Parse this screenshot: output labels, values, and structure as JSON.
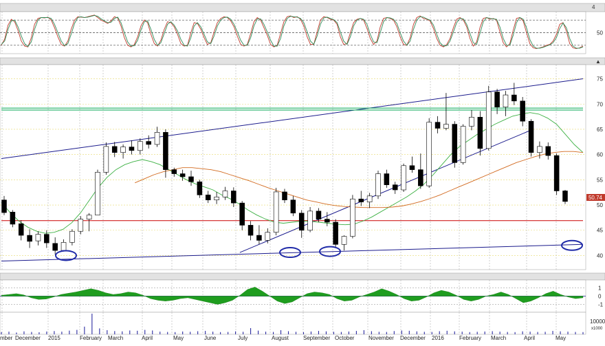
{
  "chart_data": [
    {
      "panel": "stochastic-oscillator",
      "type": "line",
      "yticks": [
        50
      ],
      "ylim": [
        0,
        100
      ],
      "levels": [
        20,
        50,
        80
      ],
      "series": [
        {
          "color": "#c0392b",
          "values": [
            20,
            35,
            68,
            82,
            76,
            55,
            30,
            18,
            16,
            38,
            70,
            84,
            86,
            85,
            87,
            80,
            62,
            40,
            22,
            18,
            30,
            58,
            80,
            88,
            87,
            86,
            88,
            90,
            92,
            86,
            80,
            76,
            72,
            78,
            88,
            85,
            66,
            38,
            20,
            16,
            22,
            40,
            66,
            80,
            74,
            46,
            24,
            18,
            32,
            58,
            76,
            74,
            64,
            46,
            24,
            18,
            20,
            50,
            74,
            72,
            58,
            38,
            22,
            26,
            52,
            74,
            84,
            88,
            86,
            78,
            64,
            42,
            22,
            18,
            22,
            48,
            76,
            86,
            80,
            62,
            44,
            22,
            16,
            20,
            48,
            76,
            88,
            90,
            86,
            88,
            82,
            66,
            40,
            22,
            22,
            52,
            80,
            88,
            86,
            82,
            80,
            70,
            40,
            22,
            24,
            50,
            74,
            82,
            84,
            80,
            60,
            36,
            22,
            30,
            64,
            84,
            86,
            84,
            80,
            64,
            40,
            22,
            20,
            38,
            70,
            86,
            90,
            84,
            82,
            78,
            60,
            36,
            20,
            16,
            22,
            36,
            62,
            82,
            86,
            80,
            64,
            36,
            18,
            28,
            62,
            84,
            86,
            82,
            84,
            80,
            52,
            26,
            16,
            24,
            56,
            84,
            86,
            78,
            50,
            24,
            14,
            12,
            14,
            16,
            20,
            22,
            30,
            46,
            70,
            74,
            54,
            24,
            14,
            12,
            14,
            18
          ]
        },
        {
          "color": "#2e8b57",
          "values": [
            22,
            30,
            58,
            78,
            80,
            64,
            42,
            24,
            17,
            28,
            58,
            80,
            86,
            86,
            86,
            84,
            70,
            50,
            30,
            19,
            24,
            46,
            72,
            86,
            88,
            86,
            87,
            89,
            91,
            89,
            83,
            78,
            74,
            75,
            84,
            87,
            74,
            50,
            28,
            18,
            19,
            32,
            56,
            76,
            78,
            58,
            34,
            20,
            26,
            48,
            70,
            76,
            68,
            54,
            34,
            20,
            18,
            38,
            66,
            74,
            64,
            46,
            28,
            24,
            42,
            66,
            80,
            86,
            87,
            82,
            70,
            52,
            32,
            20,
            20,
            38,
            66,
            83,
            83,
            70,
            52,
            32,
            18,
            18,
            36,
            66,
            84,
            89,
            88,
            87,
            84,
            74,
            52,
            30,
            22,
            42,
            70,
            85,
            87,
            84,
            81,
            74,
            52,
            30,
            22,
            40,
            66,
            80,
            84,
            82,
            70,
            46,
            28,
            26,
            50,
            76,
            86,
            85,
            82,
            72,
            50,
            30,
            20,
            30,
            58,
            80,
            88,
            87,
            83,
            80,
            68,
            46,
            26,
            18,
            19,
            30,
            52,
            74,
            84,
            83,
            70,
            48,
            26,
            22,
            48,
            76,
            86,
            84,
            83,
            82,
            64,
            36,
            20,
            20,
            44,
            74,
            86,
            82,
            62,
            34,
            18,
            13,
            13,
            15,
            18,
            21,
            26,
            38,
            60,
            73,
            62,
            36,
            18,
            13,
            13,
            16
          ]
        }
      ]
    },
    {
      "panel": "price",
      "type": "candlestick",
      "yticks": [
        40,
        45,
        50,
        55,
        60,
        65,
        70,
        75
      ],
      "ylim": [
        37.2,
        77.8
      ],
      "last_price_label": "50.74",
      "xticks": [
        "mber",
        "December",
        "2015",
        "February",
        "March",
        "April",
        "May",
        "June",
        "July",
        "August",
        "September",
        "October",
        "November",
        "December",
        "2016",
        "February",
        "March",
        "April",
        "May"
      ],
      "candles_note": "weekly OHLC approximation read off the chart",
      "ohlc": [
        [
          51.0,
          51.8,
          48.0,
          48.5
        ],
        [
          48.6,
          49.0,
          45.6,
          46.2
        ],
        [
          46.3,
          47.0,
          43.0,
          44.0
        ],
        [
          44.0,
          45.2,
          41.5,
          42.8
        ],
        [
          42.9,
          44.8,
          42.0,
          44.2
        ],
        [
          44.2,
          45.0,
          41.5,
          42.5
        ],
        [
          42.4,
          43.6,
          40.2,
          41.0
        ],
        [
          41.0,
          43.2,
          40.8,
          42.6
        ],
        [
          42.6,
          45.2,
          42.0,
          44.8
        ],
        [
          44.8,
          47.8,
          44.2,
          47.2
        ],
        [
          47.2,
          48.4,
          44.8,
          48.0
        ],
        [
          48.0,
          57.0,
          48.0,
          56.5
        ],
        [
          56.5,
          62.4,
          56.0,
          61.6
        ],
        [
          61.6,
          62.5,
          59.5,
          60.4
        ],
        [
          60.4,
          62.0,
          59.2,
          61.5
        ],
        [
          61.5,
          62.8,
          60.0,
          60.8
        ],
        [
          60.8,
          63.2,
          60.0,
          62.6
        ],
        [
          62.6,
          63.8,
          61.2,
          62.0
        ],
        [
          62.0,
          65.5,
          61.5,
          64.4
        ],
        [
          64.4,
          65.0,
          55.4,
          57.0
        ],
        [
          57.0,
          57.4,
          55.6,
          56.2
        ],
        [
          56.2,
          57.0,
          54.8,
          55.6
        ],
        [
          55.6,
          56.8,
          53.8,
          54.6
        ],
        [
          54.6,
          55.0,
          51.4,
          52.0
        ],
        [
          52.0,
          52.8,
          50.4,
          51.0
        ],
        [
          51.0,
          52.6,
          50.2,
          51.6
        ],
        [
          51.6,
          53.6,
          51.0,
          52.8
        ],
        [
          52.8,
          53.5,
          49.6,
          50.4
        ],
        [
          50.4,
          50.8,
          45.0,
          46.0
        ],
        [
          46.0,
          46.8,
          43.0,
          44.0
        ],
        [
          44.0,
          46.0,
          42.2,
          43.0
        ],
        [
          43.0,
          45.4,
          42.4,
          44.6
        ],
        [
          44.6,
          53.4,
          44.0,
          52.6
        ],
        [
          52.6,
          53.2,
          50.4,
          51.0
        ],
        [
          51.0,
          51.8,
          47.8,
          48.4
        ],
        [
          48.4,
          49.0,
          43.5,
          45.0
        ],
        [
          45.0,
          49.6,
          44.6,
          48.8
        ],
        [
          48.8,
          49.4,
          46.6,
          47.2
        ],
        [
          47.2,
          48.6,
          45.8,
          46.6
        ],
        [
          46.6,
          47.2,
          41.5,
          42.2
        ],
        [
          42.2,
          44.0,
          41.0,
          43.8
        ],
        [
          43.8,
          52.0,
          43.4,
          51.2
        ],
        [
          51.2,
          52.8,
          49.8,
          50.6
        ],
        [
          50.6,
          52.4,
          49.4,
          51.8
        ],
        [
          51.8,
          56.8,
          51.2,
          56.2
        ],
        [
          56.2,
          57.0,
          53.4,
          54.0
        ],
        [
          54.0,
          54.6,
          52.2,
          53.0
        ],
        [
          53.0,
          58.2,
          52.6,
          57.8
        ],
        [
          57.8,
          59.6,
          56.4,
          57.0
        ],
        [
          57.0,
          60.2,
          53.2,
          53.8
        ],
        [
          53.8,
          67.2,
          53.4,
          66.4
        ],
        [
          66.4,
          67.6,
          64.2,
          65.2
        ],
        [
          65.2,
          72.2,
          64.8,
          66.0
        ],
        [
          66.0,
          66.6,
          57.4,
          58.4
        ],
        [
          58.4,
          66.0,
          58.0,
          65.6
        ],
        [
          65.6,
          68.8,
          64.8,
          67.4
        ],
        [
          67.4,
          68.6,
          59.8,
          61.2
        ],
        [
          61.2,
          73.6,
          60.8,
          72.4
        ],
        [
          72.4,
          73.0,
          68.0,
          69.4
        ],
        [
          69.4,
          72.6,
          67.6,
          71.8
        ],
        [
          71.8,
          74.2,
          69.8,
          70.6
        ],
        [
          70.6,
          71.4,
          65.6,
          66.6
        ],
        [
          66.6,
          67.0,
          59.6,
          60.4
        ],
        [
          60.4,
          62.6,
          59.2,
          61.6
        ],
        [
          61.6,
          62.4,
          59.0,
          59.8
        ],
        [
          59.8,
          60.2,
          52.0,
          52.8
        ],
        [
          52.8,
          53.0,
          50.2,
          50.7
        ]
      ],
      "overlays": [
        {
          "name": "upper-trendline",
          "color": "#1a1a8c",
          "points": [
            [
              0,
              59.2
            ],
            [
              100,
              75.0
            ]
          ]
        },
        {
          "name": "lower-trendline",
          "color": "#1a1a8c",
          "points": [
            [
              0,
              38.9
            ],
            [
              100,
              42.2
            ]
          ]
        },
        {
          "name": "rising-channel-line",
          "color": "#1a1a8c",
          "points": [
            [
              41,
              40.6
            ],
            [
              91,
              64.8
            ]
          ]
        },
        {
          "name": "support-level",
          "color": "#cc0000",
          "points": [
            [
              0,
              46.9
            ],
            [
              100,
              46.9
            ]
          ]
        },
        {
          "name": "resistance-level",
          "color": "#00a651",
          "points": [
            [
              0,
              69.2
            ],
            [
              100,
              69.2
            ]
          ]
        },
        {
          "name": "resistance-level-2",
          "color": "#00a651",
          "points": [
            [
              0,
              68.8
            ],
            [
              100,
              68.8
            ]
          ]
        }
      ],
      "moving_averages": [
        {
          "color": "#3cb043",
          "values": [
            50.5,
            48.5,
            46.8,
            45.6,
            44.8,
            44.4,
            44.6,
            45.2,
            46.5,
            48.5,
            51,
            53.5,
            55.5,
            57,
            58,
            58.6,
            59,
            58.6,
            58,
            57,
            56,
            55,
            54.2,
            53.6,
            53,
            52,
            51.2,
            50.2,
            49,
            48,
            47.2,
            46.6,
            46.4,
            46.6,
            46.8,
            46.8,
            46.6,
            46.4,
            46.2,
            46.1,
            46.2,
            46.8,
            47.6,
            48.6,
            49.6,
            50.6,
            51.6,
            52.8,
            54.2,
            56,
            58,
            60,
            61.6,
            62.8,
            64,
            65,
            66,
            66.8,
            67.6,
            68,
            68.3,
            68,
            67.2,
            66,
            64,
            62,
            60.4
          ]
        },
        {
          "color": "#d2691e",
          "values": [
            null,
            null,
            null,
            null,
            null,
            null,
            null,
            null,
            null,
            null,
            null,
            null,
            null,
            null,
            54.4,
            55.2,
            56,
            56.6,
            57,
            57.4,
            57.4,
            57.2,
            57,
            56.6,
            56,
            55.4,
            54.8,
            54.1,
            53.4,
            52.8,
            52.2,
            51.6,
            51,
            50.6,
            50.2,
            49.9,
            49.7,
            49.6,
            49.5,
            49.5,
            49.5,
            49.6,
            49.8,
            50.2,
            50.7,
            51.3,
            52,
            52.8,
            53.6,
            54.4,
            55.2,
            56,
            56.8,
            57.6,
            58.4,
            59,
            59.6,
            60.1,
            60.4,
            60.6,
            60.6,
            60.4
          ]
        }
      ],
      "highlight_markers": [
        "low-circle-1",
        "low-circle-2",
        "low-circle-3",
        "target-circle"
      ]
    },
    {
      "panel": "oscillator-histogram",
      "type": "area",
      "yticks": [
        1,
        0,
        -1
      ],
      "ylim": [
        -1.5,
        1.5
      ],
      "values": [
        0.1,
        0.2,
        0.3,
        0.15,
        -0.2,
        -0.4,
        -0.35,
        -0.1,
        0.2,
        0.35,
        0.5,
        0.7,
        0.9,
        0.7,
        0.4,
        0.2,
        0.3,
        0.5,
        0.4,
        0.1,
        -0.3,
        -0.5,
        -0.6,
        -0.5,
        -0.3,
        -0.2,
        -0.4,
        -0.6,
        -0.8,
        -1.0,
        -0.8,
        -0.5,
        0.1,
        0.8,
        1.1,
        0.6,
        0.0,
        -0.6,
        -0.9,
        -0.7,
        -0.2,
        0.3,
        0.5,
        0.4,
        0.2,
        -0.3,
        -0.6,
        -0.5,
        -0.1,
        0.2,
        0.5,
        0.9,
        0.6,
        0.2,
        -0.3,
        -0.6,
        -0.5,
        -0.1,
        0.4,
        0.7,
        0.5,
        0.1,
        -0.4,
        -0.6,
        -0.4,
        0.0,
        0.2,
        0.5,
        0.2,
        -0.3,
        -0.8,
        -0.6,
        -0.2,
        0.3,
        0.6,
        0.2,
        -0.1,
        -0.3,
        -0.2
      ]
    },
    {
      "panel": "volume",
      "type": "bar",
      "yticks": [
        "10000",
        "x1000"
      ],
      "ylim": [
        0,
        14000
      ],
      "values": [
        1500,
        1800,
        1200,
        2000,
        1600,
        1400,
        1900,
        2200,
        1800,
        2500,
        3000,
        5200,
        14000,
        4000,
        2800,
        2200,
        2000,
        2600,
        2400,
        3000,
        2600,
        1800,
        1600,
        1500,
        1900,
        1700,
        2100,
        2300,
        1800,
        1500,
        1600,
        2000,
        1700,
        4200,
        2500,
        1800,
        1600,
        2800,
        2100,
        1700,
        1500,
        1900,
        2300,
        2000,
        1700,
        1600,
        1900,
        2300,
        2800,
        2100,
        1700,
        1600,
        2200,
        2600,
        2400,
        2000,
        1700,
        1600,
        2100,
        2400,
        2000,
        1800,
        1500,
        1700,
        1900,
        2100,
        1800,
        1600,
        1500,
        2000,
        1800,
        1600,
        1700,
        2300,
        2000,
        1800,
        1600,
        1500
      ]
    }
  ],
  "ui": {
    "top_right_label": "4"
  }
}
